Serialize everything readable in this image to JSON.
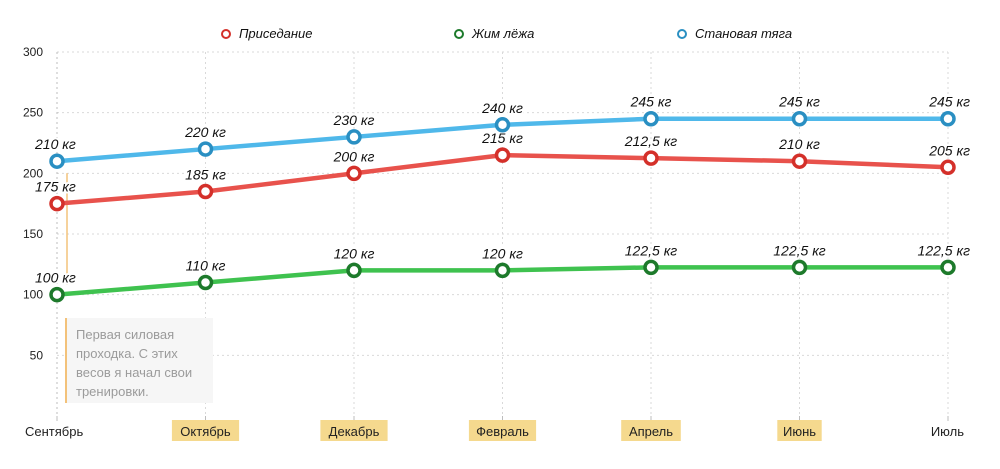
{
  "chart_data": {
    "type": "line",
    "categories": [
      "Сентябрь",
      "Октябрь",
      "Декабрь",
      "Февраль",
      "Апрель",
      "Июнь",
      "Июль"
    ],
    "highlighted_categories": [
      "Октябрь",
      "Декабрь",
      "Февраль",
      "Апрель",
      "Июнь"
    ],
    "ylim": [
      0,
      300
    ],
    "yticks": [
      50,
      100,
      150,
      200,
      250,
      300
    ],
    "grid": true,
    "legend_position": "top-center",
    "series": [
      {
        "name": "Приседание",
        "color": "#e8524c",
        "values": [
          175,
          185,
          200,
          215,
          212.5,
          210,
          205
        ],
        "labels": [
          "175 кг",
          "185 кг",
          "200 кг",
          "215 кг",
          "212,5 кг",
          "210 кг",
          "205 кг"
        ]
      },
      {
        "name": "Жим лёжа",
        "color": "#3fc24f",
        "values": [
          100,
          110,
          120,
          120,
          122.5,
          122.5,
          122.5
        ],
        "labels": [
          "100 кг",
          "110 кг",
          "120 кг",
          "120 кг",
          "122,5 кг",
          "122,5 кг",
          "122,5 кг"
        ]
      },
      {
        "name": "Становая тяга",
        "color": "#4fb8ea",
        "values": [
          210,
          220,
          230,
          240,
          245,
          245,
          245
        ],
        "labels": [
          "210 кг",
          "220 кг",
          "230 кг",
          "240 кг",
          "245 кг",
          "245 кг",
          "245 кг"
        ]
      }
    ],
    "annotation": {
      "text": "Первая силовая проходка. С этих весов я начал свои тренировки.",
      "lines": [
        "Первая силовая",
        "проходка. С этих",
        "весов я начал свои",
        "тренировки."
      ]
    },
    "colors": {
      "grid": "#d9d9d9",
      "axis": "#bdbdbd",
      "highlight": "#f5d98e"
    }
  }
}
